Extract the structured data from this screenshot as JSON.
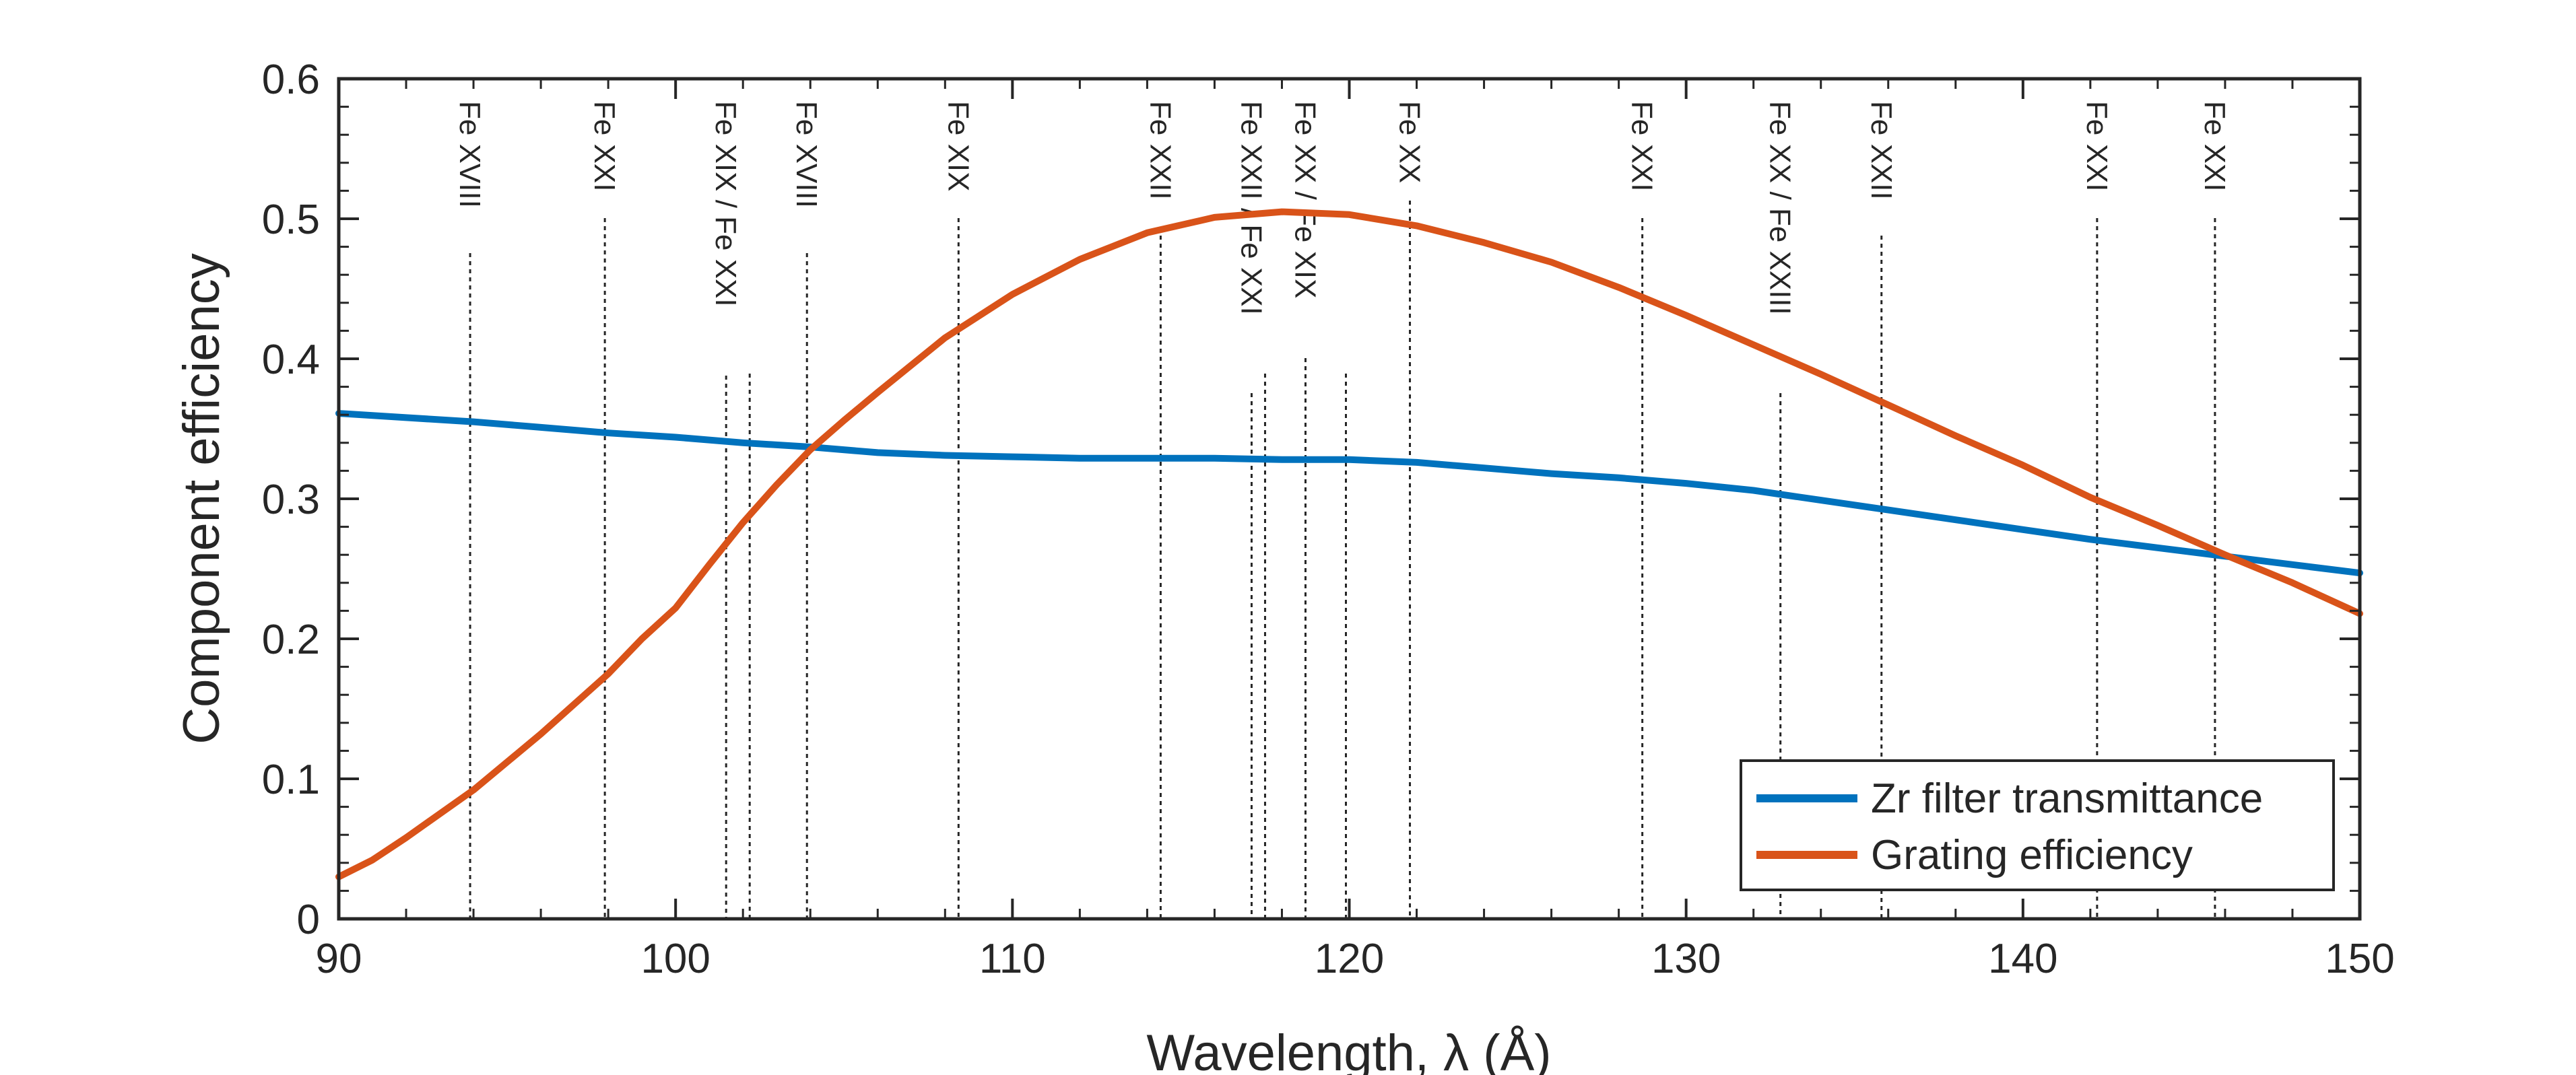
{
  "chart_data": {
    "type": "line",
    "title": "",
    "xlabel": "Wavelength, λ (Å)",
    "ylabel": "Component efficiency",
    "xlim": [
      90,
      150
    ],
    "ylim": [
      0,
      0.6
    ],
    "xticks": [
      90,
      100,
      110,
      120,
      130,
      140,
      150
    ],
    "yticks": [
      0,
      0.1,
      0.2,
      0.3,
      0.4,
      0.5,
      0.6
    ],
    "xtick_labels": [
      "90",
      "100",
      "110",
      "120",
      "130",
      "140",
      "150"
    ],
    "ytick_labels": [
      "0",
      "0.1",
      "0.2",
      "0.3",
      "0.4",
      "0.5",
      "0.6"
    ],
    "grid": false,
    "legend_position": "bottom-right",
    "series": [
      {
        "name": "Zr filter transmittance",
        "color": "#0072BD",
        "x": [
          90,
          92,
          94,
          96,
          98,
          100,
          102,
          104,
          106,
          108,
          110,
          112,
          114,
          116,
          118,
          120,
          122,
          124,
          126,
          128,
          130,
          132,
          134,
          136,
          138,
          140,
          142,
          144,
          146,
          148,
          150
        ],
        "y": [
          0.361,
          0.358,
          0.355,
          0.351,
          0.347,
          0.344,
          0.34,
          0.337,
          0.333,
          0.331,
          0.33,
          0.329,
          0.329,
          0.329,
          0.328,
          0.328,
          0.326,
          0.322,
          0.318,
          0.315,
          0.311,
          0.306,
          0.299,
          0.292,
          0.285,
          0.278,
          0.271,
          0.265,
          0.259,
          0.253,
          0.247
        ]
      },
      {
        "name": "Grating efficiency",
        "color": "#D95319",
        "x": [
          90,
          91,
          92,
          94,
          96,
          98,
          99,
          100,
          101,
          102,
          103,
          104,
          105,
          106,
          108,
          110,
          112,
          114,
          116,
          118,
          120,
          122,
          124,
          126,
          128,
          130,
          132,
          134,
          136,
          138,
          140,
          142,
          144,
          146,
          148,
          150
        ],
        "y": [
          0.03,
          0.042,
          0.058,
          0.092,
          0.132,
          0.175,
          0.2,
          0.222,
          0.253,
          0.283,
          0.31,
          0.335,
          0.356,
          0.376,
          0.415,
          0.446,
          0.471,
          0.49,
          0.501,
          0.505,
          0.503,
          0.495,
          0.483,
          0.469,
          0.451,
          0.431,
          0.41,
          0.389,
          0.367,
          0.345,
          0.324,
          0.301,
          0.281,
          0.26,
          0.24,
          0.218
        ]
      }
    ],
    "line_markers": [
      {
        "x": 93.9,
        "label": "Fe XVIII"
      },
      {
        "x": 97.9,
        "label": "Fe XXI"
      },
      {
        "x": 101.5,
        "label": "Fe XIX / Fe XXI"
      },
      {
        "x": 102.2,
        "label": ""
      },
      {
        "x": 103.9,
        "label": "Fe XVIII"
      },
      {
        "x": 108.4,
        "label": "Fe XIX"
      },
      {
        "x": 114.4,
        "label": "Fe XXII"
      },
      {
        "x": 117.1,
        "label": "Fe XXII / Fe XXI"
      },
      {
        "x": 117.5,
        "label": ""
      },
      {
        "x": 118.7,
        "label": "Fe XX / Fe XIX"
      },
      {
        "x": 119.9,
        "label": ""
      },
      {
        "x": 121.8,
        "label": "Fe XX"
      },
      {
        "x": 128.7,
        "label": "Fe XXI"
      },
      {
        "x": 132.8,
        "label": "Fe XX / Fe XXIII"
      },
      {
        "x": 135.8,
        "label": "Fe XXII"
      },
      {
        "x": 142.2,
        "label": "Fe XXI"
      },
      {
        "x": 145.7,
        "label": "Fe XXI"
      }
    ]
  }
}
